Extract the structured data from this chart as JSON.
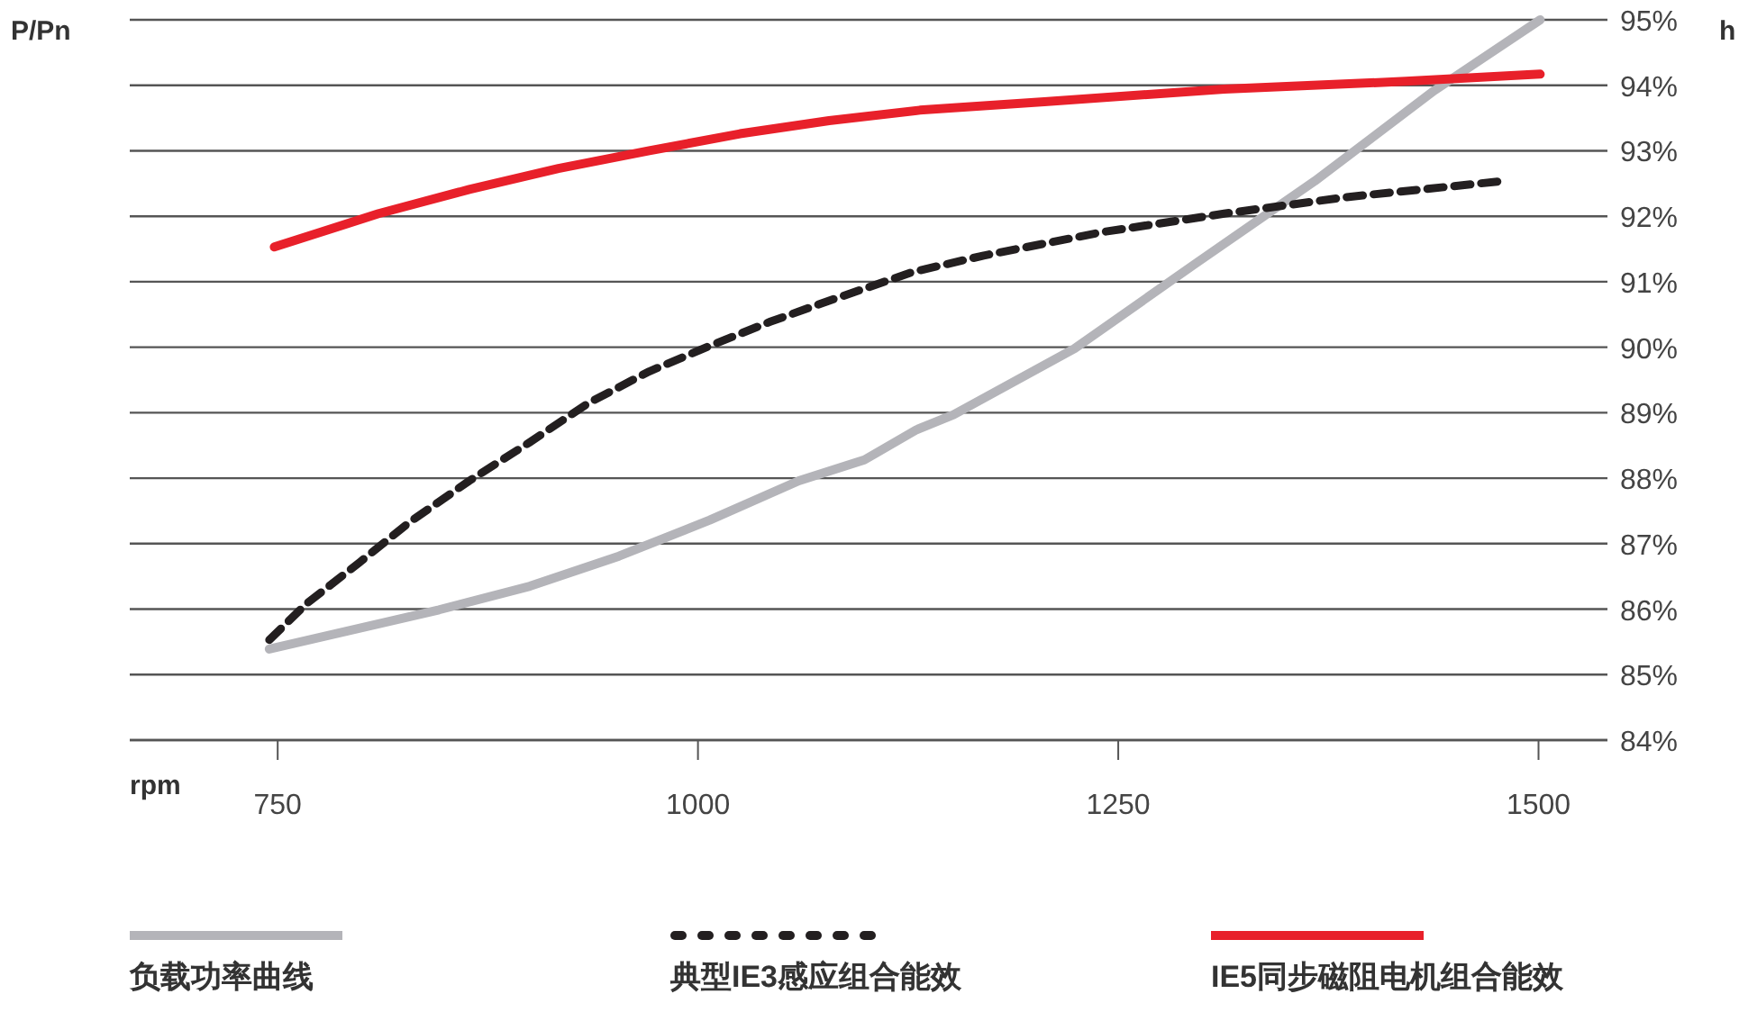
{
  "chart_data": {
    "type": "line",
    "xlabel": "rpm",
    "ylabel": "P/Pn",
    "y2label": "h",
    "xlim": [
      662,
      1541
    ],
    "xticks": [
      750,
      1000,
      1250,
      1500
    ],
    "y2lim": [
      84,
      95
    ],
    "y2ticks": [
      {
        "value": 84,
        "label": "84%"
      },
      {
        "value": 85,
        "label": "85%"
      },
      {
        "value": 86,
        "label": "86%"
      },
      {
        "value": 87,
        "label": "87%"
      },
      {
        "value": 88,
        "label": "88%"
      },
      {
        "value": 89,
        "label": "89%"
      },
      {
        "value": 90,
        "label": "90%"
      },
      {
        "value": 91,
        "label": "91%"
      },
      {
        "value": 92,
        "label": "92%"
      },
      {
        "value": 93,
        "label": "93%"
      },
      {
        "value": 94,
        "label": "94%"
      },
      {
        "value": 95,
        "label": "95%"
      }
    ],
    "grid": "y",
    "legend": "bottom",
    "series": [
      {
        "name": "负载功率曲线",
        "color": "#b4b4b9",
        "axis": "y2",
        "line_style": "solid",
        "x": [
          745,
          792,
          846,
          900,
          953,
          1007,
          1060,
          1099,
          1130,
          1152,
          1224,
          1295,
          1367,
          1438,
          1501
        ],
        "values": [
          85.39,
          85.67,
          85.99,
          86.35,
          86.81,
          87.36,
          87.96,
          88.28,
          88.74,
          88.97,
          89.98,
          91.26,
          92.54,
          93.92,
          95.0
        ]
      },
      {
        "name": "典型IE3感应组合能效",
        "color": "#231f20",
        "axis": "y2",
        "line_style": "dashed",
        "x": [
          745,
          767,
          799,
          828,
          864,
          900,
          935,
          971,
          1007,
          1043,
          1078,
          1128,
          1170,
          1241,
          1313,
          1385,
          1480
        ],
        "values": [
          85.53,
          86.08,
          86.72,
          87.32,
          87.96,
          88.55,
          89.15,
          89.63,
          90.02,
          90.39,
          90.71,
          91.15,
          91.4,
          91.76,
          92.04,
          92.29,
          92.54
        ]
      },
      {
        "name": "IE5同步磁阻电机组合能效",
        "color": "#e8202a",
        "axis": "y2",
        "line_style": "solid",
        "x": [
          748,
          810,
          864,
          917,
          971,
          1025,
          1078,
          1132,
          1206,
          1313,
          1421,
          1501
        ],
        "values": [
          91.53,
          92.04,
          92.41,
          92.73,
          93.0,
          93.26,
          93.46,
          93.62,
          93.75,
          93.94,
          94.06,
          94.17
        ]
      }
    ]
  }
}
